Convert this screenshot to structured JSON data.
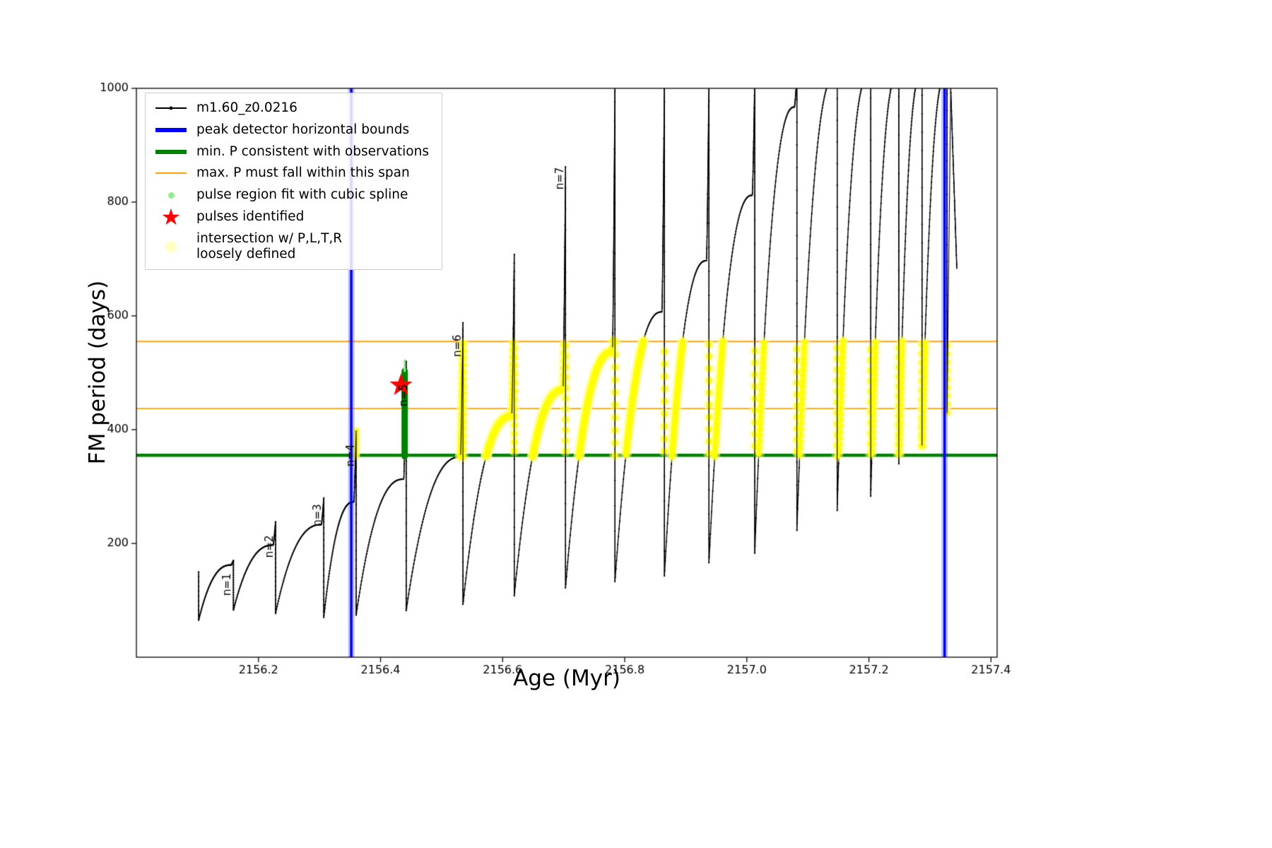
{
  "chart_data": {
    "type": "line",
    "series_name": "m1.60_z0.0216",
    "xlabel": "Age (Myr)",
    "ylabel": "FM period (days)",
    "xlim": [
      2156.0,
      2157.41
    ],
    "ylim": [
      0,
      1000
    ],
    "xticks": {
      "values": [
        2156.2,
        2156.4,
        2156.6,
        2156.8,
        2157.0,
        2157.2,
        2157.4
      ],
      "labels": [
        "2156.2",
        "2156.4",
        "2156.6",
        "2156.8",
        "2157.0",
        "2157.2",
        "2157.4"
      ]
    },
    "yticks": {
      "values": [
        200,
        400,
        600,
        800,
        1000
      ],
      "labels": [
        "200",
        "400",
        "600",
        "800",
        "1000"
      ]
    },
    "colors": {
      "series": "#000000",
      "peak_bounds": "#0000ff",
      "min_P_line": "#008000",
      "max_P_span": "#ffa500",
      "pulse_region": "#008000",
      "pulse_region_fit_marker": "#90ee90",
      "pulse_star": "#ff0000",
      "intersection": "#ffff00",
      "intersection_pale": "#ffffb0"
    },
    "peak_detector_bounds_x": [
      2156.352,
      2157.324
    ],
    "min_P_consistent_y": 355,
    "max_P_span_y": [
      437,
      555
    ],
    "intersection_band": {
      "x": [
        2156.53,
        2157.33
      ],
      "y": [
        352,
        557
      ]
    },
    "n4_intersection_patch": {
      "x": [
        2156.354,
        2156.366
      ],
      "y": [
        352,
        400
      ]
    },
    "pulse_region_fit": {
      "x": 2156.4395,
      "y0": 353,
      "y1": 503,
      "y_tip": 522
    },
    "pulses_identified": [
      {
        "x": 2156.4335,
        "y": 478
      }
    ],
    "pulse_labels": [
      {
        "text": "n=1",
        "x": 2156.1545,
        "y": 108
      },
      {
        "text": "n=2",
        "x": 2156.2235,
        "y": 175
      },
      {
        "text": "n=3",
        "x": 2156.3025,
        "y": 230
      },
      {
        "text": "n=4",
        "x": 2156.357,
        "y": 335
      },
      {
        "text": "n=5",
        "x": 2156.443,
        "y": 441
      },
      {
        "text": "n=6",
        "x": 2156.5315,
        "y": 528
      },
      {
        "text": "n=7",
        "x": 2156.6995,
        "y": 822
      }
    ],
    "lead_in": {
      "x": 2156.102,
      "y_from": 150,
      "y_to": 65
    },
    "cycles": [
      {
        "x0": 2156.102,
        "x1": 2156.159,
        "ymin": 65,
        "ytop": 162,
        "spike": 170
      },
      {
        "x0": 2156.159,
        "x1": 2156.228,
        "ymin": 83,
        "ytop": 197,
        "spike": 238
      },
      {
        "x0": 2156.228,
        "x1": 2156.307,
        "ymin": 77,
        "ytop": 233,
        "spike": 280
      },
      {
        "x0": 2156.307,
        "x1": 2156.36,
        "ymin": 70,
        "ytop": 273,
        "spike": 398
      },
      {
        "x0": 2156.36,
        "x1": 2156.442,
        "ymin": 74,
        "ytop": 313,
        "spike": 520
      },
      {
        "x0": 2156.442,
        "x1": 2156.535,
        "ymin": 82,
        "ytop": 352,
        "spike": 588
      },
      {
        "x0": 2156.535,
        "x1": 2156.619,
        "ymin": 93,
        "ytop": 424,
        "spike": 708
      },
      {
        "x0": 2156.619,
        "x1": 2156.703,
        "ymin": 108,
        "ytop": 470,
        "spike": 862
      },
      {
        "x0": 2156.703,
        "x1": 2156.784,
        "ymin": 122,
        "ytop": 537,
        "spike": 1020
      },
      {
        "x0": 2156.784,
        "x1": 2156.865,
        "ymin": 133,
        "ytop": 607,
        "spike": 1020
      },
      {
        "x0": 2156.865,
        "x1": 2156.938,
        "ymin": 143,
        "ytop": 697,
        "spike": 1020
      },
      {
        "x0": 2156.938,
        "x1": 2157.013,
        "ymin": 166,
        "ytop": 812,
        "spike": 1020
      },
      {
        "x0": 2157.013,
        "x1": 2157.082,
        "ymin": 183,
        "ytop": 967,
        "spike": 1020
      },
      {
        "x0": 2157.082,
        "x1": 2157.148,
        "ymin": 223,
        "ytop": 1020,
        "spike": 1020
      },
      {
        "x0": 2157.148,
        "x1": 2157.203,
        "ymin": 258,
        "ytop": 1020,
        "spike": 1020
      },
      {
        "x0": 2157.203,
        "x1": 2157.249,
        "ymin": 283,
        "ytop": 1020,
        "spike": 1020
      },
      {
        "x0": 2157.249,
        "x1": 2157.287,
        "ymin": 340,
        "ytop": 1020,
        "spike": 1020
      },
      {
        "x0": 2157.287,
        "x1": 2157.328,
        "ymin": 372,
        "ytop": 1020,
        "spike": 1020,
        "end_min": 430
      }
    ],
    "tail": {
      "x0": 2157.334,
      "x1": 2157.344,
      "y_from": 1000,
      "y_to": 683
    }
  },
  "legend": {
    "items": [
      {
        "marker": "line-dot",
        "color": "#000000",
        "label": "m1.60_z0.0216"
      },
      {
        "marker": "thick-line",
        "color": "#0000ff",
        "label": "peak detector horizontal bounds"
      },
      {
        "marker": "thick-line",
        "color": "#008000",
        "label": "min. P consistent with observations"
      },
      {
        "marker": "thin-line",
        "color": "#ffa500",
        "label": "max. P must fall within this span"
      },
      {
        "marker": "dot",
        "color": "#90ee90",
        "label": "pulse region fit with cubic spline"
      },
      {
        "marker": "star",
        "color": "#ff0000",
        "label": "pulses identified"
      },
      {
        "marker": "big-dot",
        "color": "#ffffb0",
        "label": "intersection w/ P,L,T,R\nloosely defined"
      }
    ]
  }
}
